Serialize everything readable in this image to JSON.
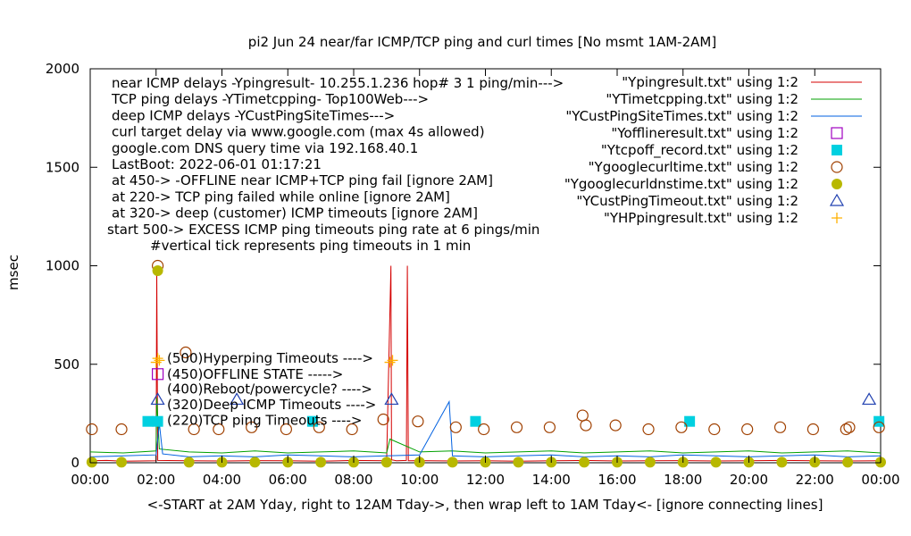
{
  "chart_data": {
    "type": "line",
    "title": "pi2  Jun 24  near/far ICMP/TCP ping and curl times [No msmt 1AM-2AM]",
    "xlabel": "<-START at 2AM Yday, right to 12AM Tday->, then wrap left to 1AM Tday<- [ignore connecting lines]",
    "ylabel": "msec",
    "xlim": [
      0,
      24
    ],
    "ylim": [
      0,
      2000
    ],
    "x_ticks": [
      0,
      2,
      4,
      6,
      8,
      10,
      12,
      14,
      16,
      18,
      20,
      22,
      24
    ],
    "x_tick_labels": [
      "00:00",
      "02:00",
      "04:00",
      "06:00",
      "08:00",
      "10:00",
      "12:00",
      "14:00",
      "16:00",
      "18:00",
      "20:00",
      "22:00",
      "00:00"
    ],
    "y_ticks": [
      0,
      500,
      1000,
      1500,
      2000
    ],
    "y_tick_labels": [
      "0",
      "500",
      "1000",
      "1500",
      "2000"
    ],
    "grid": false,
    "legend_position": "top-right",
    "info_lines": [
      "near ICMP delays -Ypingresult- 10.255.1.236 hop# 3 1 ping/min--->",
      "TCP ping delays -YTimetcpping- Top100Web--->",
      "deep ICMP delays -YCustPingSiteTimes--->",
      "curl target delay via www.google.com (max 4s allowed)",
      "google.com DNS query time via 192.168.40.1",
      "LastBoot: 2022-06-01 01:17:21",
      "at 450-> -OFFLINE near ICMP+TCP ping fail [ignore 2AM]",
      "at 220-> TCP ping failed while online [ignore 2AM]",
      "at 320-> deep (customer) ICMP timeouts [ignore 2AM]",
      "start 500-> EXCESS ICMP ping timeouts ping rate at 6 pings/min",
      "#vertical tick represents ping timeouts in 1 min"
    ],
    "annotations": [
      {
        "text": "(500)Hyperping Timeouts ---->",
        "y": 530
      },
      {
        "text": "(450)OFFLINE STATE ----->",
        "y": 450
      },
      {
        "text": "(400)Reboot/powercycle? ---->",
        "y": 375
      },
      {
        "text": "(320)Deep ICMP Timeouts ---->",
        "y": 295
      },
      {
        "text": "(220)TCP ping Timeouts ---->",
        "y": 215
      }
    ],
    "series": [
      {
        "name": "\"Ypingresult.txt\" using 1:2",
        "color": "#d40000",
        "style": "line",
        "points": [
          [
            0,
            10
          ],
          [
            0.5,
            12
          ],
          [
            1,
            8
          ],
          [
            2.0,
            10
          ],
          [
            2.02,
            980
          ],
          [
            2.05,
            12
          ],
          [
            3,
            10
          ],
          [
            4,
            9
          ],
          [
            5,
            11
          ],
          [
            6,
            10
          ],
          [
            7,
            8
          ],
          [
            8,
            12
          ],
          [
            9,
            10
          ],
          [
            9.13,
            1000
          ],
          [
            9.15,
            15
          ],
          [
            9.3,
            10
          ],
          [
            9.6,
            12
          ],
          [
            9.63,
            1000
          ],
          [
            9.66,
            10
          ],
          [
            10,
            11
          ],
          [
            11,
            9
          ],
          [
            12,
            10
          ],
          [
            13,
            8
          ],
          [
            14,
            10
          ],
          [
            15,
            12
          ],
          [
            16,
            9
          ],
          [
            17,
            10
          ],
          [
            18,
            11
          ],
          [
            19,
            9
          ],
          [
            20,
            10
          ],
          [
            21,
            12
          ],
          [
            22,
            10
          ],
          [
            23,
            9
          ],
          [
            24,
            10
          ]
        ]
      },
      {
        "name": "\"YTimetcpping.txt\" using 1:2",
        "color": "#00a000",
        "style": "line",
        "points": [
          [
            0,
            55
          ],
          [
            1,
            50
          ],
          [
            2,
            60
          ],
          [
            2.02,
            330
          ],
          [
            2.1,
            70
          ],
          [
            3,
            55
          ],
          [
            4,
            50
          ],
          [
            5,
            60
          ],
          [
            6,
            50
          ],
          [
            7,
            55
          ],
          [
            8,
            60
          ],
          [
            9,
            50
          ],
          [
            9.1,
            120
          ],
          [
            10,
            55
          ],
          [
            11,
            60
          ],
          [
            12,
            50
          ],
          [
            13,
            55
          ],
          [
            14,
            60
          ],
          [
            15,
            50
          ],
          [
            16,
            55
          ],
          [
            17,
            60
          ],
          [
            18,
            50
          ],
          [
            19,
            55
          ],
          [
            20,
            60
          ],
          [
            21,
            50
          ],
          [
            22,
            55
          ],
          [
            23,
            60
          ],
          [
            24,
            50
          ]
        ]
      },
      {
        "name": "\"YCustPingSiteTimes.txt\" using 1:2",
        "color": "#0060e0",
        "style": "line",
        "points": [
          [
            0,
            30
          ],
          [
            1,
            35
          ],
          [
            2,
            40
          ],
          [
            2.1,
            200
          ],
          [
            2.2,
            45
          ],
          [
            3,
            30
          ],
          [
            4,
            35
          ],
          [
            5,
            30
          ],
          [
            6,
            40
          ],
          [
            7,
            35
          ],
          [
            8,
            30
          ],
          [
            9,
            35
          ],
          [
            10,
            40
          ],
          [
            10.9,
            310
          ],
          [
            11,
            35
          ],
          [
            12,
            30
          ],
          [
            13,
            35
          ],
          [
            14,
            40
          ],
          [
            15,
            30
          ],
          [
            16,
            35
          ],
          [
            17,
            30
          ],
          [
            18,
            40
          ],
          [
            19,
            35
          ],
          [
            20,
            30
          ],
          [
            21,
            35
          ],
          [
            22,
            40
          ],
          [
            23,
            30
          ],
          [
            24,
            35
          ]
        ]
      },
      {
        "name": "\"Yofflineresult.txt\" using 1:2",
        "color": "#a000c0",
        "style": "square-open",
        "points": [
          [
            2.05,
            450
          ]
        ]
      },
      {
        "name": "\"Ytcpoff_record.txt\" using 1:2",
        "color": "#00d0e0",
        "style": "square-filled",
        "points": [
          [
            1.75,
            210
          ],
          [
            2.05,
            210
          ],
          [
            6.75,
            210
          ],
          [
            11.7,
            210
          ],
          [
            18.2,
            210
          ],
          [
            23.95,
            210
          ]
        ]
      },
      {
        "name": "\"Ygooglecurltime.txt\" using 1:2",
        "color": "#a04000",
        "style": "circle-open",
        "points": [
          [
            0.05,
            170
          ],
          [
            0.95,
            170
          ],
          [
            2.05,
            1000
          ],
          [
            2.9,
            560
          ],
          [
            3.15,
            170
          ],
          [
            3.9,
            170
          ],
          [
            4.9,
            180
          ],
          [
            5.95,
            170
          ],
          [
            6.95,
            180
          ],
          [
            7.95,
            170
          ],
          [
            8.9,
            220
          ],
          [
            9.95,
            210
          ],
          [
            11.1,
            180
          ],
          [
            11.95,
            170
          ],
          [
            12.95,
            180
          ],
          [
            13.95,
            180
          ],
          [
            14.95,
            240
          ],
          [
            15.05,
            190
          ],
          [
            15.95,
            190
          ],
          [
            16.95,
            170
          ],
          [
            17.95,
            180
          ],
          [
            18.95,
            170
          ],
          [
            19.95,
            170
          ],
          [
            20.95,
            180
          ],
          [
            21.95,
            170
          ],
          [
            22.95,
            170
          ],
          [
            23.05,
            180
          ],
          [
            23.95,
            180
          ]
        ]
      },
      {
        "name": "\"Ygooglecurldnstime.txt\" using 1:2",
        "color": "#b8b800",
        "style": "circle-filled",
        "points": [
          [
            0.05,
            3
          ],
          [
            0.95,
            3
          ],
          [
            2.05,
            975
          ],
          [
            3,
            3
          ],
          [
            4,
            3
          ],
          [
            5,
            3
          ],
          [
            6,
            3
          ],
          [
            7,
            3
          ],
          [
            8,
            3
          ],
          [
            9,
            3
          ],
          [
            10,
            3
          ],
          [
            11,
            3
          ],
          [
            12,
            3
          ],
          [
            13,
            3
          ],
          [
            14,
            3
          ],
          [
            15,
            3
          ],
          [
            16,
            3
          ],
          [
            17,
            3
          ],
          [
            18,
            3
          ],
          [
            19,
            3
          ],
          [
            20,
            3
          ],
          [
            21,
            3
          ],
          [
            22,
            3
          ],
          [
            23,
            3
          ],
          [
            24,
            3
          ]
        ]
      },
      {
        "name": "\"YCustPingTimeout.txt\" using 1:2",
        "color": "#2040b0",
        "style": "triangle-open",
        "points": [
          [
            2.05,
            320
          ],
          [
            4.45,
            320
          ],
          [
            9.15,
            320
          ],
          [
            23.65,
            320
          ]
        ]
      },
      {
        "name": "\"YHPpingresult.txt\" using 1:2",
        "color": "#ffb000",
        "style": "plus",
        "points": [
          [
            2.0,
            510
          ],
          [
            2.05,
            530
          ],
          [
            2.1,
            520
          ],
          [
            9.1,
            510
          ],
          [
            9.18,
            520
          ]
        ]
      }
    ]
  }
}
